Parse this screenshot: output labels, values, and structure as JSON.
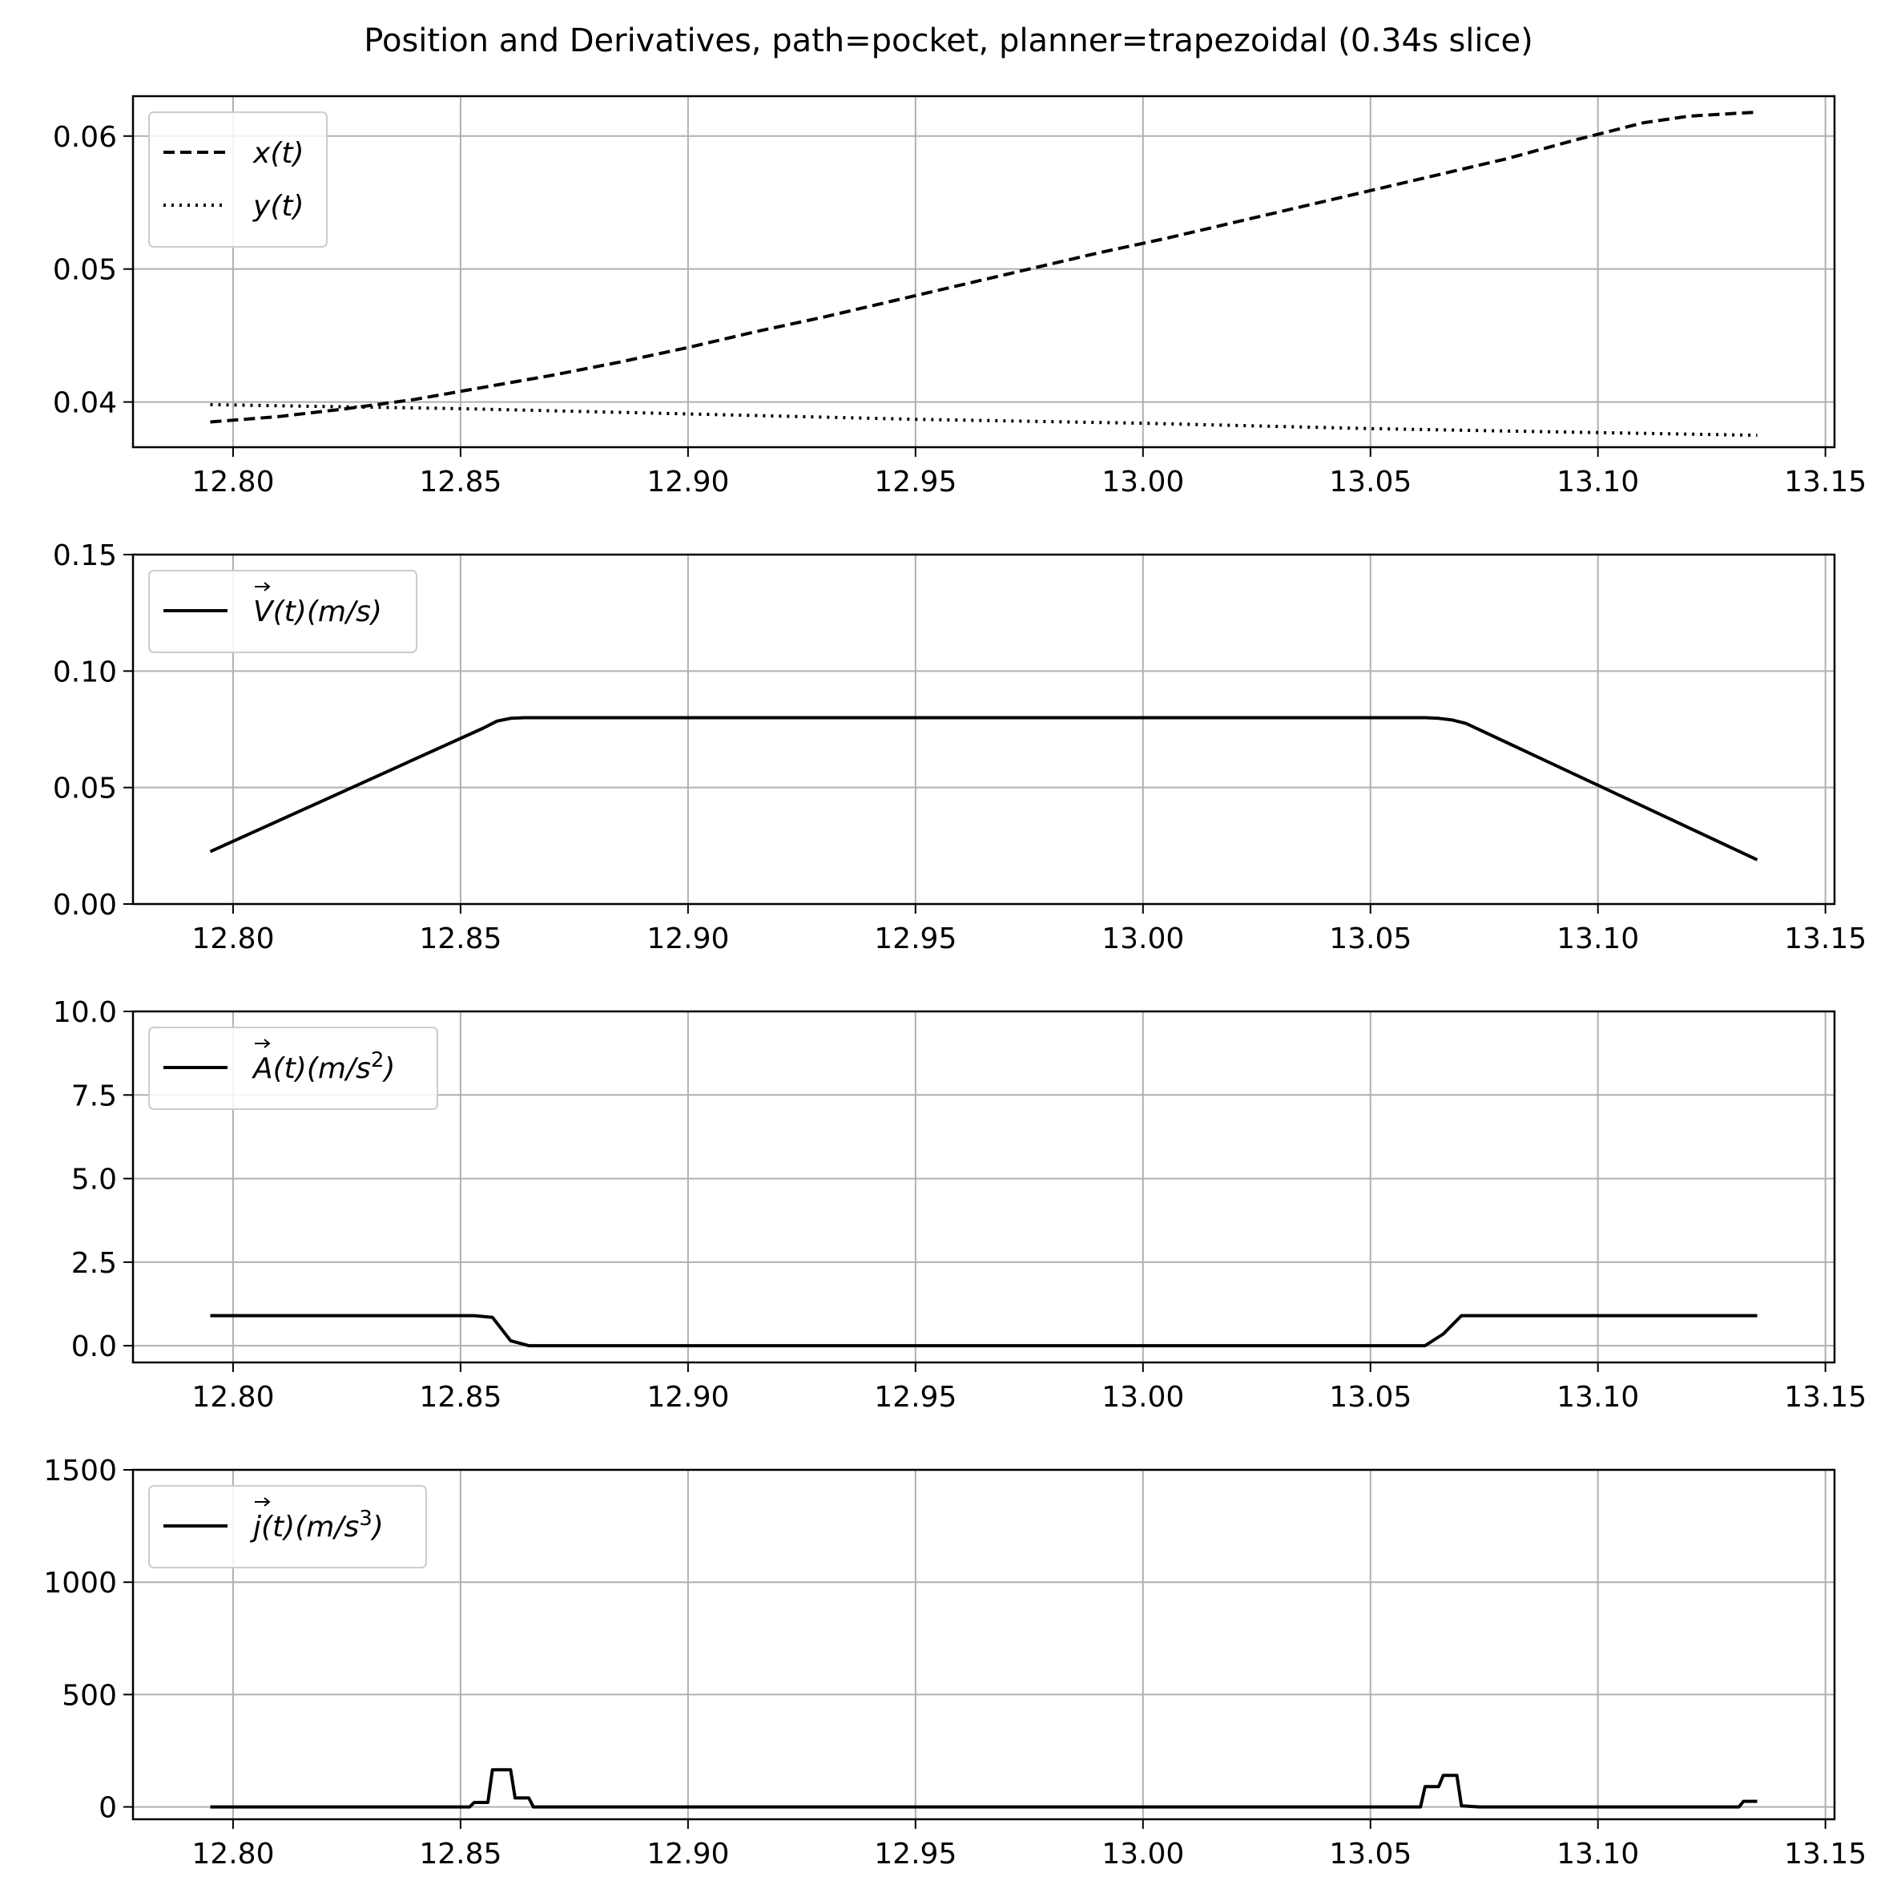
{
  "title": "Position and Derivatives, path=pocket, planner=trapezoidal (0.34s slice)",
  "chart_data": [
    {
      "type": "line",
      "xlim": [
        12.778,
        13.152
      ],
      "ylim": [
        0.0366,
        0.063
      ],
      "xticks": [
        12.8,
        12.85,
        12.9,
        12.95,
        13.0,
        13.05,
        13.1,
        13.15
      ],
      "xtick_labels": [
        "12.80",
        "12.85",
        "12.90",
        "12.95",
        "13.00",
        "13.05",
        "13.10",
        "13.15"
      ],
      "yticks": [
        0.04,
        0.05,
        0.06
      ],
      "ytick_labels": [
        "0.04",
        "0.05",
        "0.06"
      ],
      "grid": true,
      "legend": "top-left",
      "series": [
        {
          "name": "x(t)",
          "legend_main": "x",
          "legend_suffix": "(t)",
          "style": "dashed",
          "color": "#000000",
          "x": [
            12.795,
            12.81,
            12.825,
            12.84,
            12.855,
            12.87,
            12.885,
            12.9,
            12.915,
            12.93,
            12.945,
            12.96,
            12.975,
            12.99,
            13.005,
            13.02,
            13.035,
            13.05,
            13.065,
            13.08,
            13.095,
            13.11,
            13.12,
            13.135
          ],
          "y": [
            0.0385,
            0.0389,
            0.0395,
            0.0402,
            0.0411,
            0.042,
            0.043,
            0.0441,
            0.0453,
            0.0464,
            0.0476,
            0.0488,
            0.05,
            0.0512,
            0.0523,
            0.0535,
            0.0547,
            0.0559,
            0.0571,
            0.0583,
            0.0597,
            0.061,
            0.0615,
            0.0618
          ]
        },
        {
          "name": "y(t)",
          "legend_main": "y",
          "legend_suffix": "(t)",
          "style": "dotted",
          "color": "#000000",
          "x": [
            12.795,
            12.85,
            12.9,
            12.95,
            13.0,
            13.05,
            13.1,
            13.135
          ],
          "y": [
            0.0398,
            0.0395,
            0.0391,
            0.0387,
            0.0384,
            0.038,
            0.0377,
            0.0375
          ]
        }
      ]
    },
    {
      "type": "line",
      "xlim": [
        12.778,
        13.152
      ],
      "ylim": [
        0.0,
        0.15
      ],
      "xticks": [
        12.8,
        12.85,
        12.9,
        12.95,
        13.0,
        13.05,
        13.1,
        13.15
      ],
      "xtick_labels": [
        "12.80",
        "12.85",
        "12.90",
        "12.95",
        "13.00",
        "13.05",
        "13.10",
        "13.15"
      ],
      "yticks": [
        0.0,
        0.05,
        0.1,
        0.15
      ],
      "ytick_labels": [
        "0.00",
        "0.05",
        "0.10",
        "0.15"
      ],
      "grid": true,
      "legend": "top-left",
      "series": [
        {
          "name": "V(t)(m/s)",
          "legend_main": "V",
          "legend_suffix": "(t)(m/s)",
          "style": "solid",
          "color": "#000000",
          "x": [
            12.795,
            12.855,
            12.858,
            12.861,
            12.864,
            13.062,
            13.065,
            13.068,
            13.071,
            13.135
          ],
          "y": [
            0.0225,
            0.0755,
            0.0785,
            0.0797,
            0.08,
            0.08,
            0.0797,
            0.079,
            0.0775,
            0.019
          ]
        }
      ]
    },
    {
      "type": "line",
      "xlim": [
        12.778,
        13.152
      ],
      "ylim": [
        -0.5,
        10.0
      ],
      "xticks": [
        12.8,
        12.85,
        12.9,
        12.95,
        13.0,
        13.05,
        13.1,
        13.15
      ],
      "xtick_labels": [
        "12.80",
        "12.85",
        "12.90",
        "12.95",
        "13.00",
        "13.05",
        "13.10",
        "13.15"
      ],
      "yticks": [
        0.0,
        2.5,
        5.0,
        7.5,
        10.0
      ],
      "ytick_labels": [
        "0.0",
        "2.5",
        "5.0",
        "7.5",
        "10.0"
      ],
      "grid": true,
      "legend": "top-left",
      "series": [
        {
          "name": "A(t)(m/s^2)",
          "legend_main": "A",
          "legend_suffix": "(t)(m/s",
          "legend_sup": "2",
          "legend_close": ")",
          "style": "solid",
          "color": "#000000",
          "x": [
            12.795,
            12.853,
            12.857,
            12.861,
            12.865,
            12.868,
            13.062,
            13.066,
            13.07,
            13.074,
            13.135
          ],
          "y": [
            0.9,
            0.9,
            0.85,
            0.15,
            0.0,
            0.0,
            0.0,
            0.35,
            0.9,
            0.9,
            0.9
          ]
        }
      ]
    },
    {
      "type": "line",
      "xlim": [
        12.778,
        13.152
      ],
      "ylim": [
        -55,
        1500
      ],
      "xticks": [
        12.8,
        12.85,
        12.9,
        12.95,
        13.0,
        13.05,
        13.1,
        13.15
      ],
      "xtick_labels": [
        "12.80",
        "12.85",
        "12.90",
        "12.95",
        "13.00",
        "13.05",
        "13.10",
        "13.15"
      ],
      "yticks": [
        0,
        500,
        1000,
        1500
      ],
      "ytick_labels": [
        "0",
        "500",
        "1000",
        "1500"
      ],
      "grid": true,
      "legend": "top-left",
      "series": [
        {
          "name": "j(t)(m/s^3)",
          "legend_main": "j",
          "legend_suffix": "(t)(m/s",
          "legend_sup": "3",
          "legend_close": ")",
          "style": "solid",
          "color": "#000000",
          "x": [
            12.795,
            12.852,
            12.853,
            12.856,
            12.857,
            12.861,
            12.862,
            12.865,
            12.866,
            13.061,
            13.062,
            13.065,
            13.066,
            13.069,
            13.07,
            13.074,
            13.131,
            13.132,
            13.135
          ],
          "y": [
            0,
            0,
            20,
            20,
            165,
            165,
            40,
            40,
            0,
            0,
            90,
            90,
            140,
            140,
            5,
            0,
            0,
            25,
            25
          ]
        }
      ]
    }
  ]
}
